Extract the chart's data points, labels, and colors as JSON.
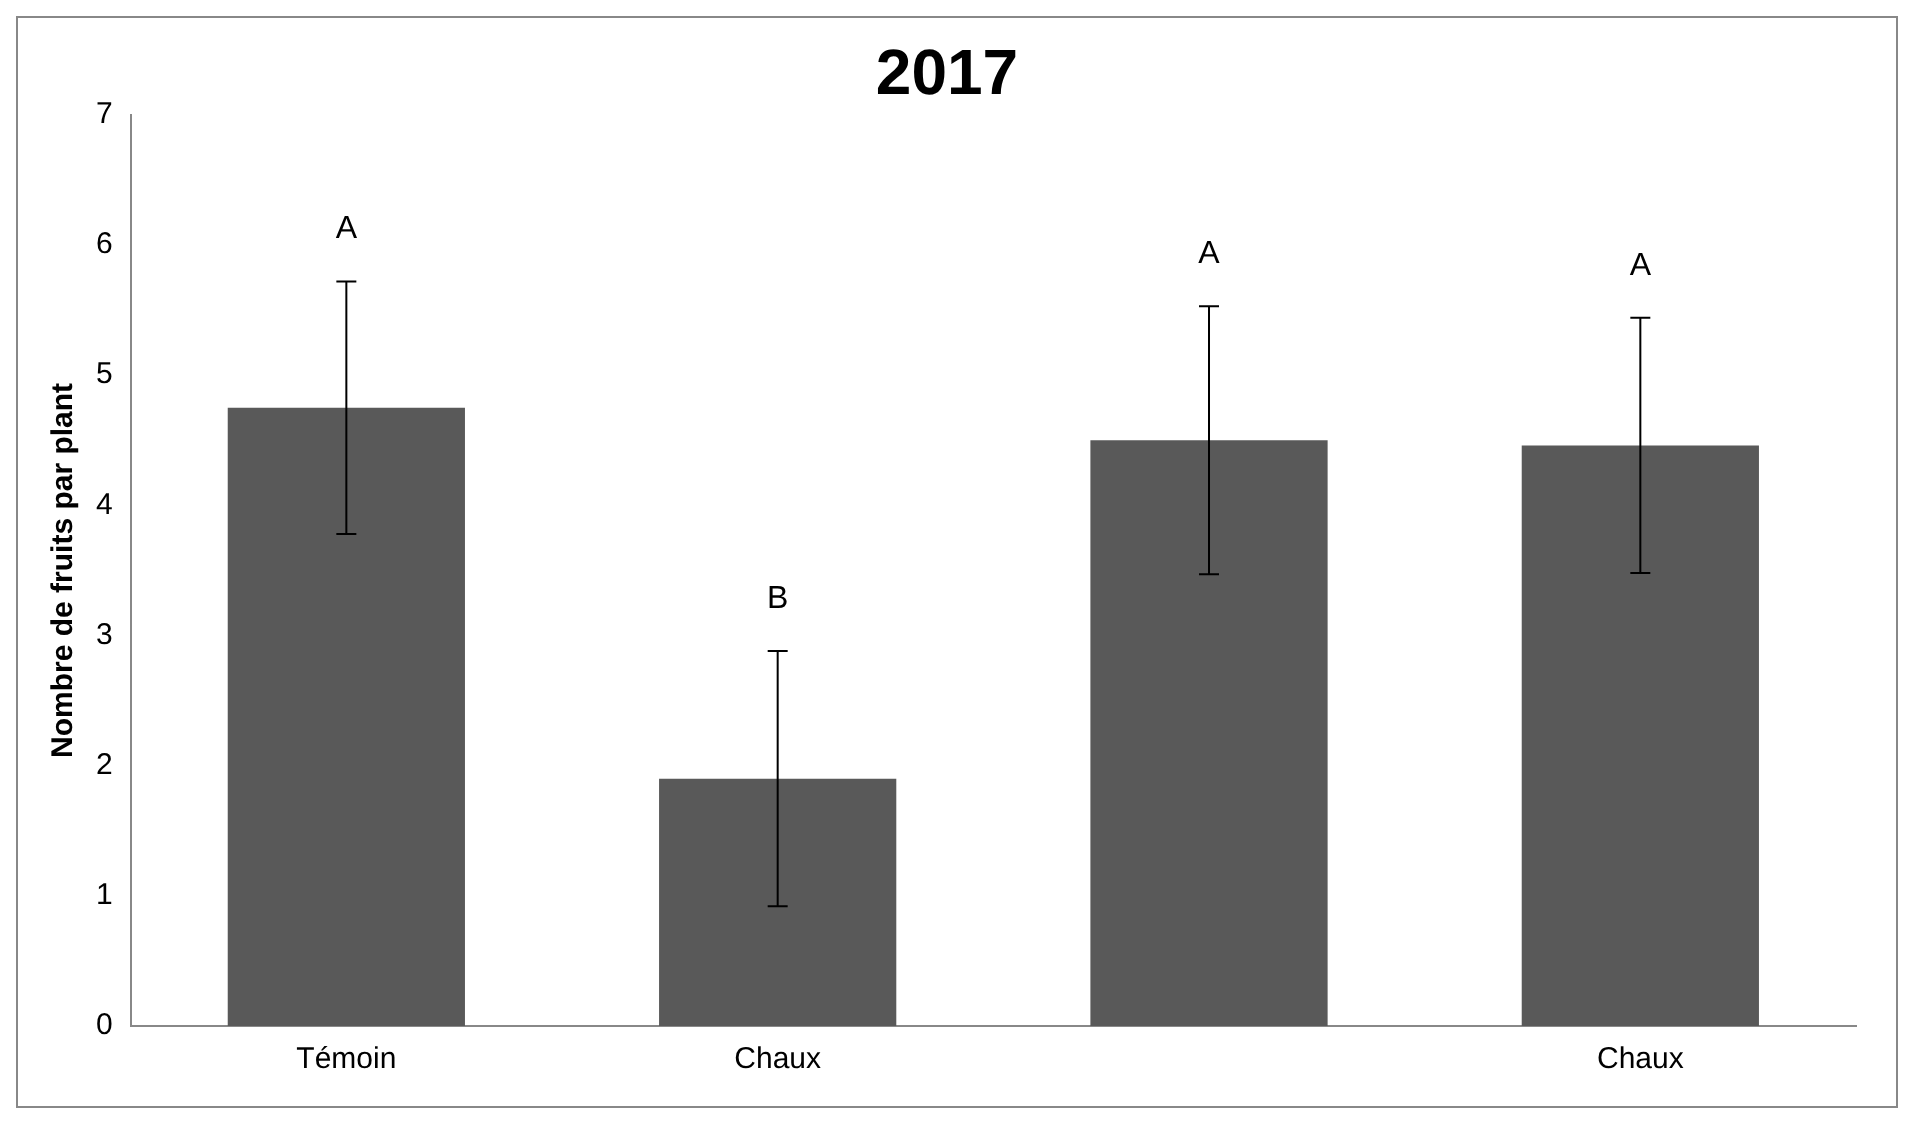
{
  "chart_data": {
    "type": "bar",
    "title": "2017",
    "ylabel": "Nombre de fruits par plant",
    "categories": [
      "Témoin",
      "Chaux",
      null,
      "Chaux"
    ],
    "values": [
      4.75,
      1.9,
      4.5,
      4.46
    ],
    "errors": [
      0.97,
      0.98,
      1.03,
      0.98
    ],
    "annotations": [
      "A",
      "B",
      "A",
      "A"
    ],
    "color": "#595959",
    "ylim": [
      0,
      7
    ],
    "yticks": [
      0,
      1,
      2,
      3,
      4,
      5,
      6,
      7
    ],
    "grid": false
  }
}
